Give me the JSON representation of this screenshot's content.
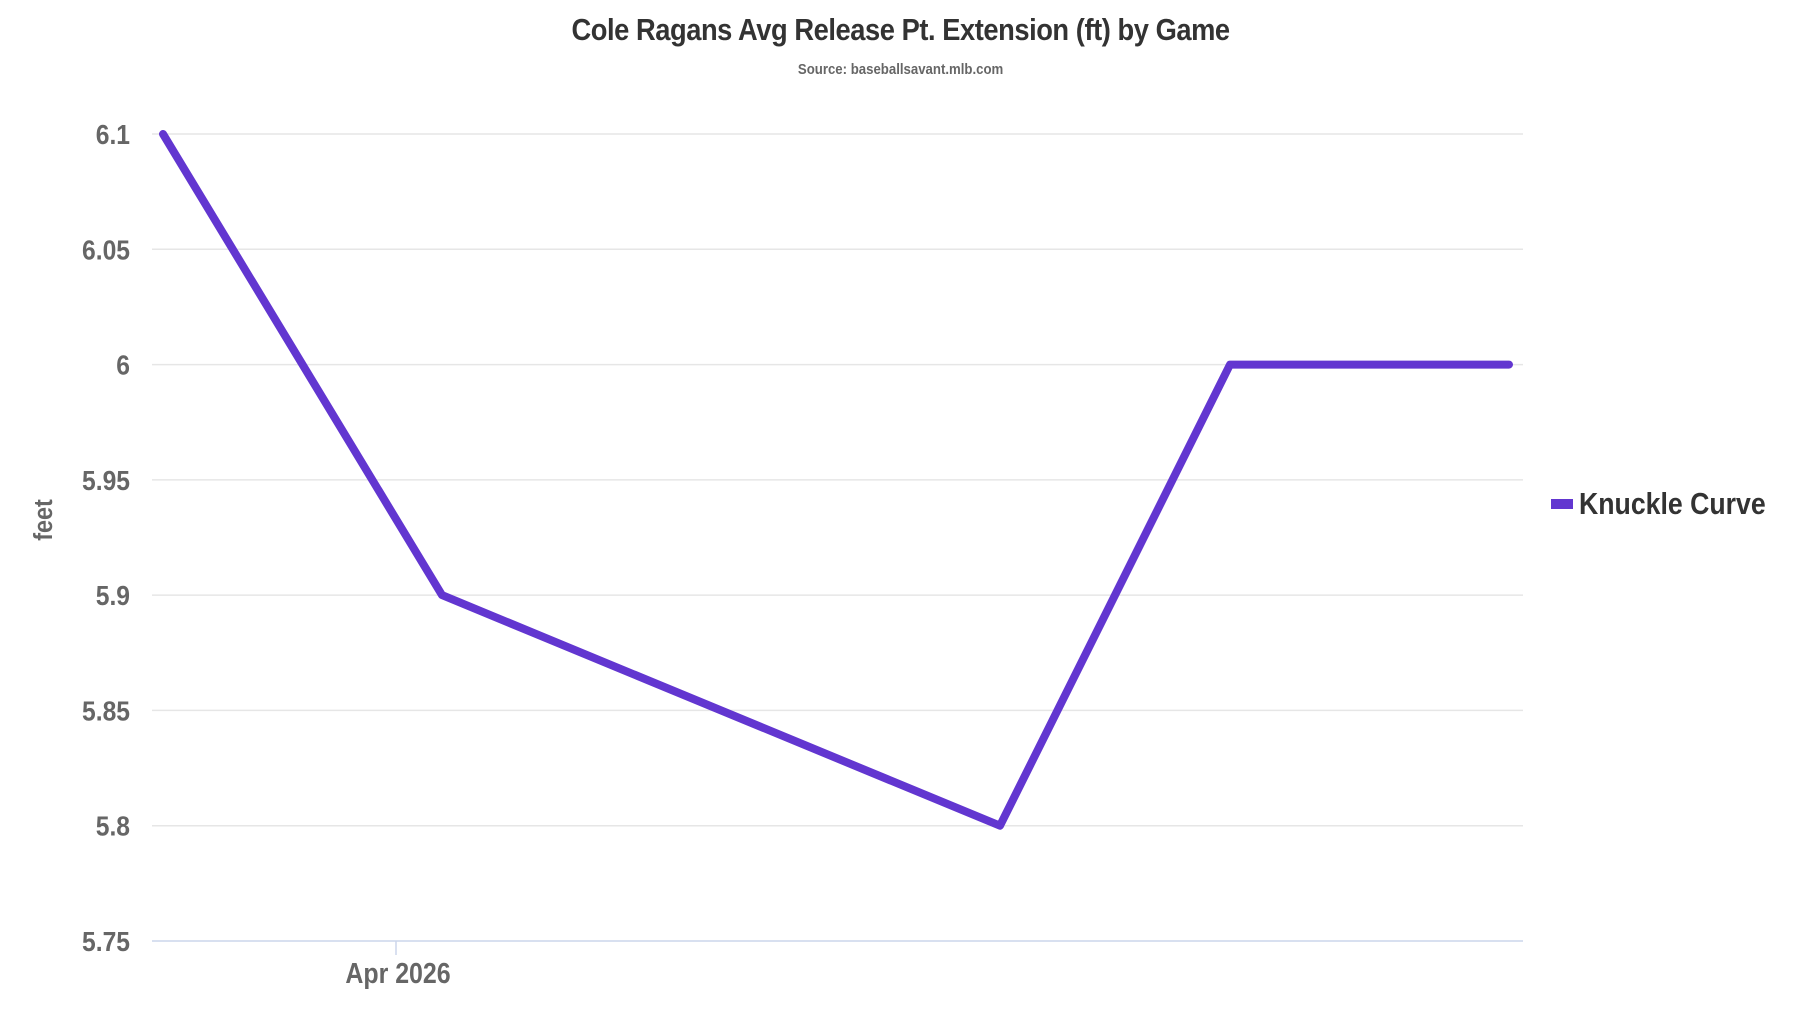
{
  "header": {
    "title": "Cole Ragans Avg Release Pt. Extension (ft) by Game",
    "subtitle": "Source: baseballsavant.mlb.com"
  },
  "colors": {
    "series": "#6236d0",
    "grid": "#e6e6e6",
    "axis": "#ccd6eb",
    "tick_text": "#666666",
    "title_text": "#333333"
  },
  "axes": {
    "y_label": "feet",
    "y_ticks": [
      "6.1",
      "6.05",
      "6",
      "5.95",
      "5.9",
      "5.85",
      "5.8",
      "5.75"
    ],
    "x_ticks": [
      "Apr 2026"
    ]
  },
  "legend": {
    "items": [
      {
        "label": "Knuckle Curve",
        "color": "#6236d0"
      }
    ]
  },
  "chart_data": {
    "type": "line",
    "title": "Cole Ragans Avg Release Pt. Extension (ft) by Game",
    "subtitle": "Source: baseballsavant.mlb.com",
    "xlabel": "",
    "ylabel": "feet",
    "ylim": [
      5.75,
      6.1
    ],
    "yticks": [
      5.75,
      5.8,
      5.85,
      5.9,
      5.95,
      6,
      6.05,
      6.1
    ],
    "xtick_labels": [
      "Apr 2026"
    ],
    "grid": true,
    "legend_position": "right",
    "series": [
      {
        "name": "Knuckle Curve",
        "color": "#6236d0",
        "points": [
          {
            "game": 1,
            "value": 6.1
          },
          {
            "game": 2,
            "value": 5.9
          },
          {
            "game": 3,
            "value": 5.8
          },
          {
            "game": 4,
            "value": 6.0
          },
          {
            "game": 5,
            "value": 6.0
          }
        ],
        "values": [
          6.1,
          5.9,
          5.8,
          6.0,
          6.0
        ]
      }
    ]
  }
}
